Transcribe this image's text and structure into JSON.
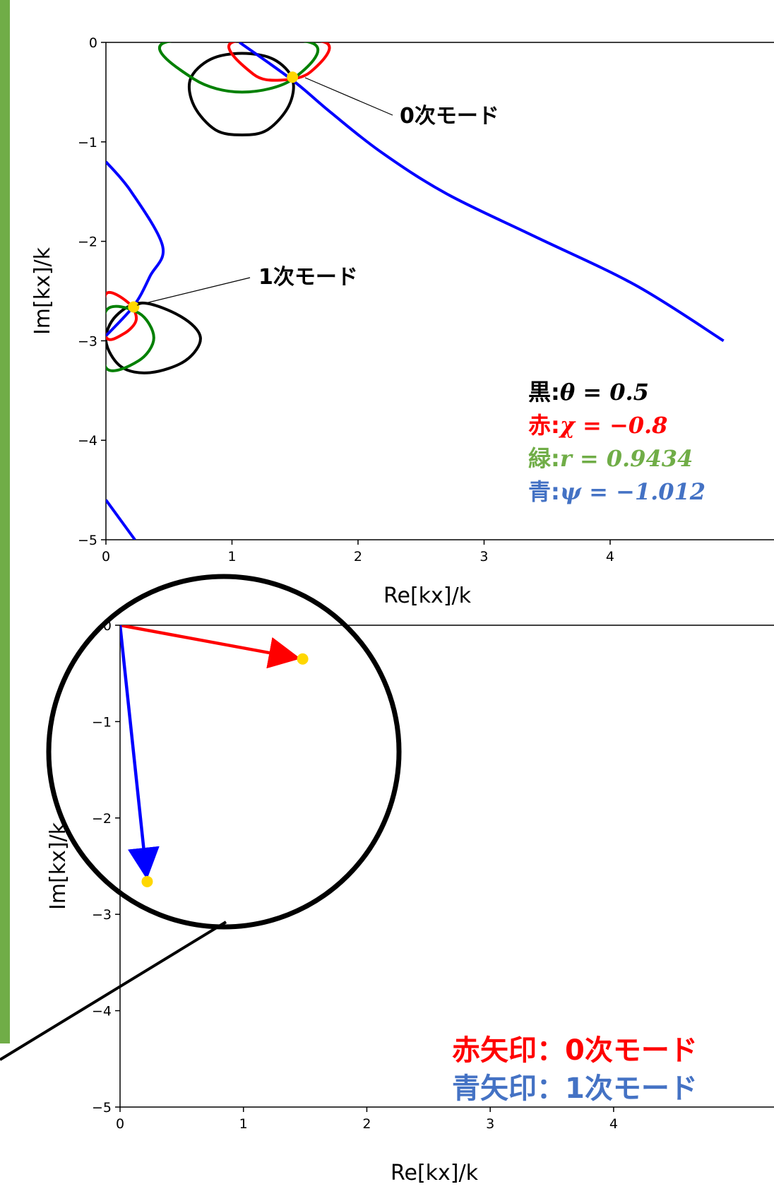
{
  "chart_data": [
    {
      "type": "line",
      "xlabel": "Re[kx]/k",
      "ylabel": "Im[kx]/k",
      "xlim": [
        0,
        5
      ],
      "ylim": [
        -5,
        0
      ],
      "x_ticks": [
        "0",
        "1",
        "2",
        "3",
        "4"
      ],
      "y_ticks": [
        "0",
        "−1",
        "−2",
        "−3",
        "−4",
        "−5"
      ],
      "grid": false,
      "curves": [
        {
          "color": "#000000",
          "shape": "closed contour",
          "points": [
            [
              1.08,
              -0.11
            ],
            [
              1.33,
              -0.17
            ],
            [
              1.48,
              -0.37
            ],
            [
              1.45,
              -0.64
            ],
            [
              1.28,
              -0.88
            ],
            [
              1.08,
              -0.93
            ],
            [
              0.87,
              -0.88
            ],
            [
              0.7,
              -0.64
            ],
            [
              0.67,
              -0.37
            ],
            [
              0.83,
              -0.17
            ]
          ]
        },
        {
          "color": "#000000",
          "shape": "closed contour",
          "points": [
            [
              0.29,
              -2.62
            ],
            [
              0.6,
              -2.76
            ],
            [
              0.75,
              -2.97
            ],
            [
              0.63,
              -3.2
            ],
            [
              0.35,
              -3.32
            ],
            [
              0.12,
              -3.26
            ],
            [
              0.0,
              -3.0
            ],
            [
              0.08,
              -2.75
            ]
          ]
        },
        {
          "color": "#ff0000",
          "shape": "closed contour",
          "points": [
            [
              1.0,
              0.0
            ],
            [
              1.17,
              -0.32
            ],
            [
              1.38,
              -0.38
            ],
            [
              1.62,
              -0.3
            ],
            [
              1.74,
              0.0
            ]
          ]
        },
        {
          "color": "#ff0000",
          "shape": "closed contour",
          "points": [
            [
              0.0,
              -2.53
            ],
            [
              0.18,
              -2.62
            ],
            [
              0.24,
              -2.79
            ],
            [
              0.14,
              -2.93
            ],
            [
              0.0,
              -2.96
            ]
          ]
        },
        {
          "color": "#008000",
          "shape": "closed contour",
          "points": [
            [
              0.47,
              0.0
            ],
            [
              0.7,
              -0.37
            ],
            [
              1.08,
              -0.5
            ],
            [
              1.48,
              -0.37
            ],
            [
              1.62,
              0.0
            ]
          ]
        },
        {
          "color": "#008000",
          "shape": "closed contour",
          "points": [
            [
              0.0,
              -2.7
            ],
            [
              0.26,
              -2.72
            ],
            [
              0.38,
              -2.97
            ],
            [
              0.26,
              -3.2
            ],
            [
              0.0,
              -3.27
            ]
          ]
        },
        {
          "color": "#0000ff",
          "name": "",
          "points": [
            [
              1.06,
              0.0
            ],
            [
              1.48,
              -0.38
            ],
            [
              1.78,
              -0.7
            ],
            [
              2.18,
              -1.1
            ],
            [
              2.7,
              -1.52
            ],
            [
              3.4,
              -1.95
            ],
            [
              4.2,
              -2.44
            ],
            [
              4.9,
              -3.0
            ]
          ]
        },
        {
          "color": "#0000ff",
          "points": [
            [
              0.0,
              -1.2
            ],
            [
              0.2,
              -1.5
            ],
            [
              0.45,
              -2.05
            ],
            [
              0.35,
              -2.35
            ],
            [
              0.22,
              -2.65
            ],
            [
              0.0,
              -2.95
            ]
          ]
        },
        {
          "color": "#0000ff",
          "points": [
            [
              0.0,
              -4.6
            ],
            [
              0.23,
              -5.0
            ]
          ]
        }
      ],
      "points": [
        {
          "x": 1.48,
          "y": -0.35,
          "color": "#ffd700"
        },
        {
          "x": 0.22,
          "y": -2.66,
          "color": "#ffd700"
        }
      ],
      "annotations": [
        "0次モード",
        "1次モード"
      ],
      "params": [
        {
          "prefix": "黒:",
          "expr": "θ = 0.5",
          "color": "#000000"
        },
        {
          "prefix": "赤:",
          "expr": "χ = −0.8",
          "color": "#ff0000"
        },
        {
          "prefix": "緑:",
          "expr": "r = 0.9434",
          "color": "#70ad47"
        },
        {
          "prefix": "青:",
          "expr": "ψ = −1.012",
          "color": "#4472c4"
        }
      ]
    },
    {
      "type": "line",
      "xlabel": "Re[kx]/k",
      "ylabel": "Im[kx]/k",
      "xlim": [
        0,
        5
      ],
      "ylim": [
        -5,
        0
      ],
      "x_ticks": [
        "0",
        "1",
        "2",
        "3",
        "4"
      ],
      "y_ticks": [
        "0",
        "−1",
        "−2",
        "−3",
        "−4",
        "−5"
      ],
      "grid": false,
      "arrows": [
        {
          "from": [
            0,
            0
          ],
          "to": [
            1.48,
            -0.35
          ],
          "color": "#ff0000"
        },
        {
          "from": [
            0,
            0
          ],
          "to": [
            0.22,
            -2.66
          ],
          "color": "#0000ff"
        }
      ],
      "legend_lines": [
        {
          "text": "赤矢印：0次モード",
          "color": "#ff0000"
        },
        {
          "text": "青矢印：1次モード",
          "color": "#4472c4"
        }
      ]
    }
  ]
}
